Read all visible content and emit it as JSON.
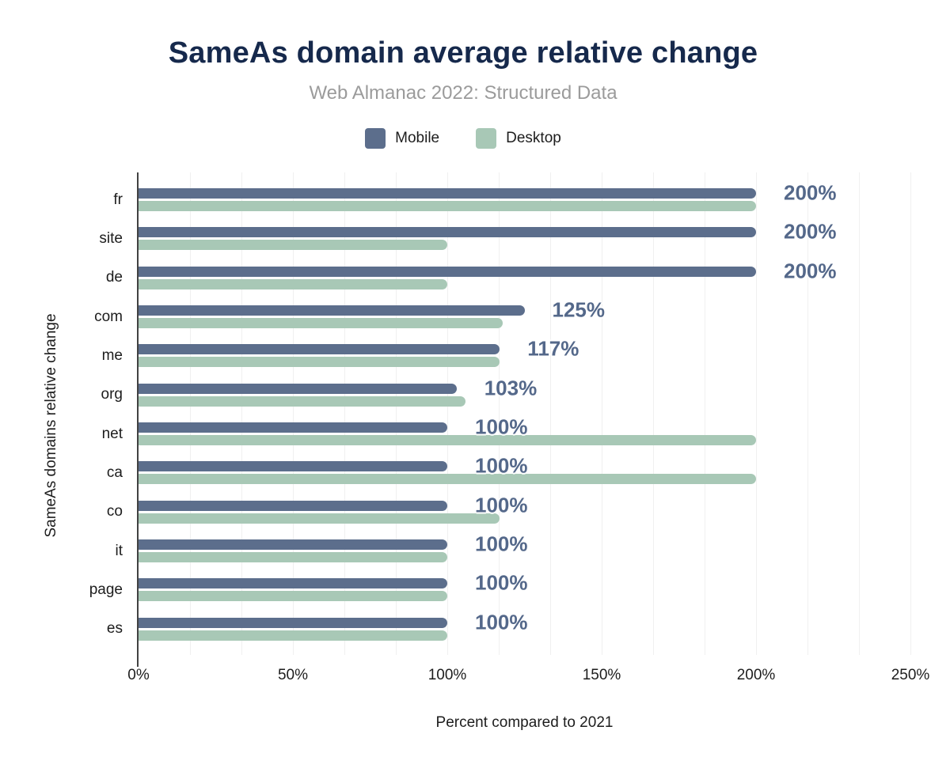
{
  "title": "SameAs domain average relative change",
  "subtitle": "Web Almanac 2022: Structured Data",
  "legend": [
    {
      "label": "Mobile",
      "color": "#5c6e8c"
    },
    {
      "label": "Desktop",
      "color": "#a8c8b6"
    }
  ],
  "chart_data": {
    "type": "bar",
    "orientation": "horizontal",
    "title": "SameAs domain average relative change",
    "subtitle": "Web Almanac 2022: Structured Data",
    "xlabel": "Percent compared to 2021",
    "ylabel": "SameAs domains relative change",
    "xlim": [
      0,
      250
    ],
    "xtick_values": [
      0,
      50,
      100,
      150,
      200,
      250
    ],
    "xtick_labels": [
      "0%",
      "50%",
      "100%",
      "150%",
      "200%",
      "250%"
    ],
    "grid": "faint vertical minor gridlines every 16.67%, legend top center",
    "categories": [
      "fr",
      "site",
      "de",
      "com",
      "me",
      "org",
      "net",
      "ca",
      "co",
      "it",
      "page",
      "es"
    ],
    "series": [
      {
        "name": "Mobile",
        "color": "#5c6e8c",
        "values": [
          200,
          200,
          200,
          125,
          117,
          103,
          100,
          100,
          100,
          100,
          100,
          100
        ]
      },
      {
        "name": "Desktop",
        "color": "#a8c8b6",
        "values": [
          200,
          100,
          100,
          118,
          117,
          106,
          200,
          200,
          117,
          100,
          100,
          100
        ]
      }
    ],
    "annotations": {
      "attached_to_series": "Mobile",
      "labels": [
        "200%",
        "200%",
        "200%",
        "125%",
        "117%",
        "103%",
        "100%",
        "100%",
        "100%",
        "100%",
        "100%",
        "100%"
      ],
      "color": "#54688a"
    }
  },
  "colors": {
    "title": "#16294c",
    "subtitle": "#9b9b9b",
    "axis_text": "#1d1d1d",
    "gridline": "#f0f0f0",
    "axis_line": "#424242",
    "annotation": "#54688a",
    "background": "#ffffff"
  }
}
